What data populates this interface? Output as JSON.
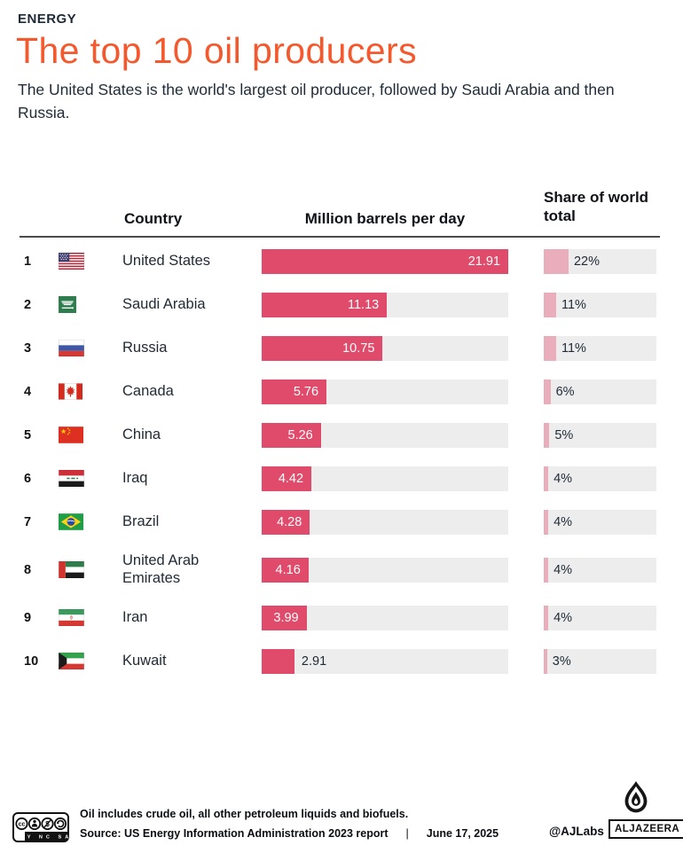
{
  "kicker": "ENERGY",
  "title": "The top 10 oil producers",
  "subtitle": "The United States is the world's largest oil producer, followed by Saudi Arabia and then Russia.",
  "table": {
    "columns": {
      "country": "Country",
      "value": "Million barrels per day",
      "share": "Share of world total"
    },
    "max_value": 21.91,
    "rows": [
      {
        "rank": "1",
        "country": "United States",
        "flag": "us",
        "value": 21.91,
        "value_label": "21.91",
        "share_pct": 22,
        "share_label": "22%"
      },
      {
        "rank": "2",
        "country": "Saudi Arabia",
        "flag": "sa",
        "value": 11.13,
        "value_label": "11.13",
        "share_pct": 11,
        "share_label": "11%"
      },
      {
        "rank": "3",
        "country": "Russia",
        "flag": "ru",
        "value": 10.75,
        "value_label": "10.75",
        "share_pct": 11,
        "share_label": "11%"
      },
      {
        "rank": "4",
        "country": "Canada",
        "flag": "ca",
        "value": 5.76,
        "value_label": "5.76",
        "share_pct": 6,
        "share_label": "6%"
      },
      {
        "rank": "5",
        "country": "China",
        "flag": "cn",
        "value": 5.26,
        "value_label": "5.26",
        "share_pct": 5,
        "share_label": "5%"
      },
      {
        "rank": "6",
        "country": "Iraq",
        "flag": "iq",
        "value": 4.42,
        "value_label": "4.42",
        "share_pct": 4,
        "share_label": "4%"
      },
      {
        "rank": "7",
        "country": "Brazil",
        "flag": "br",
        "value": 4.28,
        "value_label": "4.28",
        "share_pct": 4,
        "share_label": "4%"
      },
      {
        "rank": "8",
        "country": "United Arab Emirates",
        "flag": "ae",
        "value": 4.16,
        "value_label": "4.16",
        "share_pct": 4,
        "share_label": "4%"
      },
      {
        "rank": "9",
        "country": "Iran",
        "flag": "ir",
        "value": 3.99,
        "value_label": "3.99",
        "share_pct": 4,
        "share_label": "4%"
      },
      {
        "rank": "10",
        "country": "Kuwait",
        "flag": "kw",
        "value": 2.91,
        "value_label": "2.91",
        "share_pct": 3,
        "share_label": "3%"
      }
    ]
  },
  "chart_data": {
    "type": "bar",
    "orientation": "horizontal",
    "title": "The top 10 oil producers",
    "subtitle": "The United States is the world's largest oil producer, followed by Saudi Arabia and then Russia.",
    "categories": [
      "United States",
      "Saudi Arabia",
      "Russia",
      "Canada",
      "China",
      "Iraq",
      "Brazil",
      "United Arab Emirates",
      "Iran",
      "Kuwait"
    ],
    "series": [
      {
        "name": "Million barrels per day",
        "values": [
          21.91,
          11.13,
          10.75,
          5.76,
          5.26,
          4.42,
          4.28,
          4.16,
          3.99,
          2.91
        ]
      },
      {
        "name": "Share of world total (%)",
        "values": [
          22,
          11,
          11,
          6,
          5,
          4,
          4,
          4,
          4,
          3
        ]
      }
    ],
    "xlim": [
      0,
      21.91
    ],
    "grid": false,
    "legend_position": "column-headers"
  },
  "footer": {
    "license_label": "BY NC SA",
    "note": "Oil includes crude oil, all other petroleum liquids and biofuels.",
    "source": "Source:  US Energy Information Administration 2023 report",
    "separator": "|",
    "date": "June 17, 2025",
    "credit": "@AJLabs",
    "brand": "ALJAZEERA"
  },
  "colors": {
    "accent_orange": "#f4582d",
    "bar_fill": "#e14b6b",
    "share_fill": "#e9adbc",
    "track_gray": "#ededed",
    "text_dark": "#1e2b38"
  }
}
